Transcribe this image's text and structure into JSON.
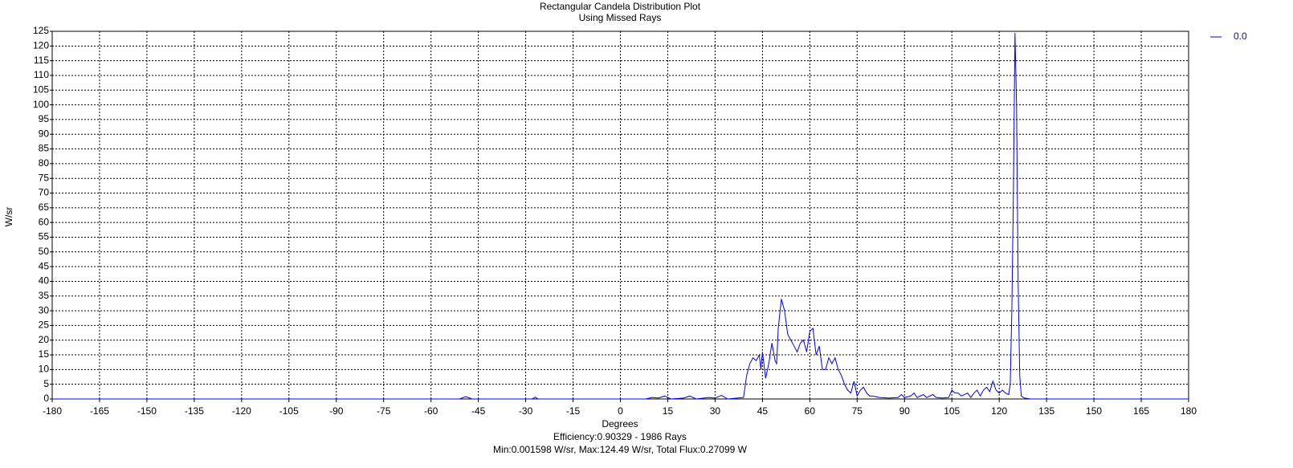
{
  "chart_data": {
    "type": "line",
    "title": "Rectangular Candela Distribution Plot",
    "subtitle": "Using Missed Rays",
    "x_label": "Degrees",
    "y_label": "W/sr",
    "footer": [
      "Efficiency:0.90329 - 1986 Rays",
      "Min:0.001598 W/sr, Max:124.49 W/sr, Total Flux:0.27099 W"
    ],
    "x": [
      -180,
      -51,
      -49,
      -47,
      -28,
      -27,
      -26,
      8,
      10,
      12,
      14,
      16,
      20,
      22,
      24,
      28,
      30,
      32,
      34,
      37,
      39,
      40,
      41,
      42,
      43,
      44,
      44.5,
      45,
      46,
      47,
      48,
      49,
      49.5,
      50,
      51,
      52,
      53,
      54,
      55,
      56,
      57,
      58,
      59,
      60,
      61,
      62,
      63,
      64,
      65,
      66,
      67,
      68,
      69,
      70,
      71,
      72,
      73,
      74,
      75,
      76,
      77,
      78,
      79,
      80,
      82,
      85,
      88,
      89,
      90,
      92,
      93,
      94,
      96,
      97,
      99,
      100,
      102,
      104,
      105,
      106,
      107,
      108,
      110,
      111,
      112,
      113,
      114,
      115,
      116,
      117,
      118,
      119,
      120,
      121,
      122,
      123,
      123.5,
      124,
      124.5,
      125,
      125.5,
      126,
      126.5,
      127,
      128,
      130,
      180
    ],
    "series": [
      {
        "name": "0.0",
        "color": "#0000ff",
        "values": [
          0,
          0,
          0.8,
          0,
          0,
          0.6,
          0,
          0,
          0.5,
          0.3,
          1,
          0,
          0.3,
          1,
          0,
          0.5,
          0.3,
          1.2,
          0,
          0.3,
          0.5,
          8,
          12,
          14,
          13,
          15,
          10,
          16,
          7,
          12,
          19,
          13,
          12,
          24,
          34,
          30,
          22,
          20,
          18,
          16,
          19,
          20,
          16,
          23,
          24,
          15,
          18,
          10,
          10,
          14,
          12,
          14,
          10,
          8,
          5,
          3,
          2,
          6,
          1,
          3,
          4,
          2,
          1,
          1,
          0.5,
          0.3,
          0.5,
          1.5,
          0.5,
          1,
          2,
          0.5,
          1.5,
          0.5,
          1.5,
          0.5,
          0.3,
          0.5,
          3,
          2,
          2,
          1,
          2,
          0.5,
          2,
          3,
          1,
          3,
          4,
          2.5,
          6,
          3,
          2,
          3,
          2,
          1.5,
          5,
          30,
          70,
          124.49,
          100,
          40,
          8,
          1,
          0.3,
          0,
          0
        ]
      }
    ],
    "xlim": [
      -180,
      180
    ],
    "xticks": [
      -180,
      -165,
      -150,
      -135,
      -120,
      -105,
      -90,
      -75,
      -60,
      -45,
      -30,
      -15,
      0,
      15,
      30,
      45,
      60,
      75,
      90,
      105,
      120,
      135,
      150,
      165,
      180
    ],
    "ylim": [
      0,
      125
    ],
    "yticks": [
      0,
      5,
      10,
      15,
      20,
      25,
      30,
      35,
      40,
      45,
      50,
      55,
      60,
      65,
      70,
      75,
      80,
      85,
      90,
      95,
      100,
      105,
      110,
      115,
      120,
      125
    ],
    "grid": true,
    "legend": "top-right"
  }
}
